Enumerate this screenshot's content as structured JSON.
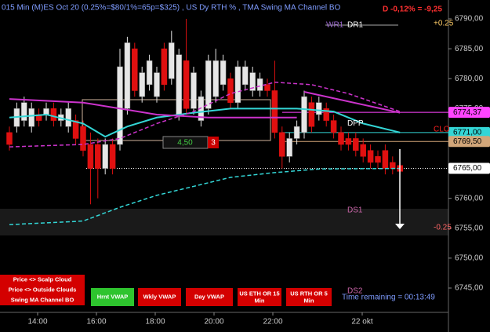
{
  "chart_data": {
    "type": "candlestick",
    "title": "015 Min (M)ES Oct 20 (0.25%=$80/1%=65p=$325) , US Dy RTH % , TMA Swing MA Channel BO",
    "change_label": "D -0,12% = -9,25",
    "open": [
      6771,
      6772,
      6773,
      6772,
      6774,
      6774,
      6775,
      6773,
      6772,
      6773,
      6772,
      6769,
      6769,
      6765,
      6769,
      6769,
      6775,
      6785,
      6777,
      6779,
      6777,
      6785,
      6780,
      6774,
      6783,
      6775,
      6773,
      6775,
      6777,
      6779,
      6780,
      6776,
      6779,
      6778,
      6778,
      6779,
      6778,
      6771,
      6767,
      6770,
      6771,
      6776,
      6774,
      6775,
      6773,
      6771,
      6770,
      6770,
      6769,
      6768,
      6767,
      6768,
      6766,
      6765.5
    ],
    "high": [
      6772,
      6776,
      6777,
      6776,
      6775,
      6776,
      6776,
      6775,
      6776,
      6774,
      6773,
      6771,
      6770,
      6770,
      6770,
      6785,
      6787,
      6786,
      6782,
      6784,
      6782,
      6786,
      6788,
      6785,
      6790,
      6782,
      6778,
      6784,
      6785,
      6784,
      6781,
      6783,
      6783,
      6782,
      6781,
      6780,
      6783,
      6772,
      6771,
      6773,
      6778,
      6777,
      6777,
      6776,
      6774,
      6772,
      6771,
      6771,
      6770,
      6769,
      6768,
      6769,
      6767,
      6766
    ],
    "low": [
      6768,
      6771,
      6772,
      6771,
      6772,
      6773,
      6772,
      6772,
      6771,
      6769,
      6767,
      6759,
      6760,
      6764,
      6764,
      6768,
      6774,
      6777,
      6776,
      6778,
      6776,
      6778,
      6779,
      6773,
      6774,
      6774,
      6772,
      6774,
      6776,
      6778,
      6775,
      6775,
      6778,
      6777,
      6777,
      6777,
      6770,
      6765,
      6766,
      6769,
      6770,
      6771,
      6773,
      6772,
      6770,
      6768,
      6768,
      6767,
      6766,
      6765,
      6765,
      6764,
      6764,
      6764
    ],
    "close": [
      6769,
      6775,
      6776,
      6775,
      6773,
      6775,
      6773,
      6774,
      6775,
      6770,
      6768,
      6765,
      6765,
      6769,
      6765,
      6782,
      6786,
      6778,
      6781,
      6783,
      6781,
      6779,
      6786,
      6784,
      6775,
      6781,
      6777,
      6783,
      6783,
      6783,
      6776,
      6782,
      6782,
      6781,
      6780,
      6778,
      6771,
      6767,
      6770,
      6772,
      6777,
      6772,
      6776,
      6773,
      6771,
      6769,
      6769,
      6768,
      6767,
      6766,
      6766,
      6765,
      6765,
      6764.5
    ],
    "up_color": "#e6e6e6",
    "down_color": "#e01010",
    "lines": [
      {
        "color": "#33d6d6",
        "dash": false,
        "x": [
          0,
          5,
          10,
          13,
          16,
          20,
          25,
          30,
          35,
          39,
          44,
          48,
          53
        ],
        "values": [
          6773.5,
          6774,
          6772.5,
          6770.3,
          6772,
          6773.5,
          6774.3,
          6775,
          6775,
          6775,
          6774.5,
          6772.5,
          6771
        ]
      },
      {
        "color": "#cc33cc",
        "dash": false,
        "x": [
          0,
          10,
          20,
          27,
          35,
          39
        ],
        "values": [
          6776.6,
          6776,
          6774,
          6773.5,
          6773.5,
          6773.5
        ]
      },
      {
        "color": "#cc33cc",
        "dash": false,
        "x": [
          40,
          53
        ],
        "values": [
          6777.8,
          6774.3
        ]
      },
      {
        "color": "#cc33cc",
        "dash": true,
        "x": [
          0,
          10,
          15,
          20,
          25,
          30,
          36,
          41,
          46,
          53
        ],
        "values": [
          6768.6,
          6769,
          6770,
          6772.5,
          6774.5,
          6777.5,
          6779.4,
          6779,
          6777.5,
          6774.5
        ]
      },
      {
        "color": "#33d6d6",
        "dash": true,
        "x": [
          0,
          10,
          15,
          20,
          25,
          30,
          36,
          42,
          53
        ],
        "values": [
          6755.6,
          6756.2,
          6758.5,
          6760.5,
          6762,
          6763.5,
          6764.3,
          6764.9,
          6765
        ]
      }
    ],
    "levels": [
      {
        "value": 6774.37,
        "label": "6774,37",
        "color": "#ff44ff"
      },
      {
        "value": 6771,
        "label": "6771,00",
        "color": "#33d6d6"
      },
      {
        "value": 6769.5,
        "label": "6769,50",
        "color": "#d2a679"
      },
      {
        "value": 6765,
        "label": "6765,00",
        "color": "#ffffff"
      }
    ],
    "pivot_labels": [
      {
        "text": "WR1",
        "value": 6789,
        "color": "#9966cc"
      },
      {
        "text": "DR1",
        "value": 6789,
        "color": "#ffffff"
      },
      {
        "text": "DPP",
        "value": 6772.5,
        "color": "#ffffff"
      },
      {
        "text": "CLO",
        "value": 6771.5,
        "color": "#ff2020"
      },
      {
        "text": "DS1",
        "value": 6758,
        "color": "#cc66aa"
      },
      {
        "text": "DS2",
        "value": 6744.5,
        "color": "#cc66aa"
      }
    ],
    "range_top": "+0.25",
    "range_bottom": "-0.25",
    "ylim": [
      6741.5,
      6793
    ],
    "yticks": [
      {
        "value": 6745,
        "label": "6745,00"
      },
      {
        "value": 6750,
        "label": "6750,00"
      },
      {
        "value": 6755,
        "label": "6755,00"
      },
      {
        "value": 6760,
        "label": "6760,00"
      },
      {
        "value": 6765,
        "label": "6765,00"
      },
      {
        "value": 6770,
        "label": "6770,00"
      },
      {
        "value": 6775,
        "label": "6775,00"
      },
      {
        "value": 6780,
        "label": "6780,00"
      },
      {
        "value": 6785,
        "label": "6785,00"
      },
      {
        "value": 6790,
        "label": "6790,00"
      }
    ],
    "xticks": [
      "14:00",
      "16:00",
      "18:00",
      "20:00",
      "22:00",
      "22 okt"
    ],
    "box_left": "4,50",
    "box_right": "3",
    "buttons": [
      "Price <> Scalp Cloud",
      "Price <> Outside Clouds",
      "Swing MA Channel BO",
      "Hrnt VWAP",
      "Wkly VWAP",
      "Day VWAP",
      "US ETH OR 15 Min",
      "US RTH OR 5 Min"
    ],
    "time_remaining": "Time remaining = 00:13:49"
  }
}
